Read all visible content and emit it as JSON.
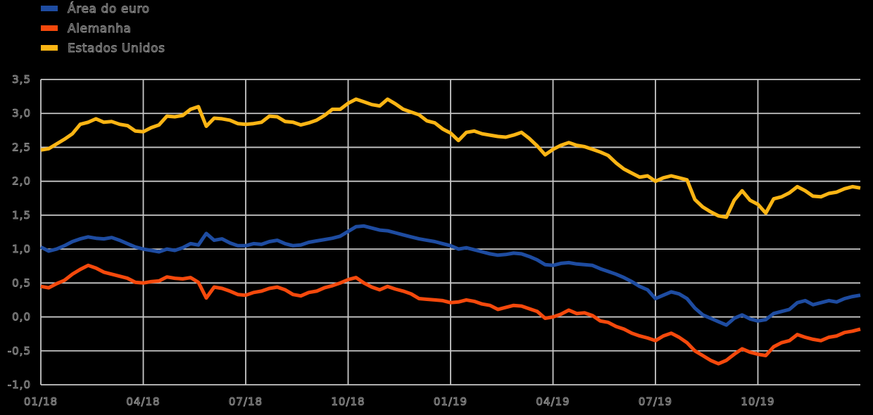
{
  "legend": {
    "position": "top-left",
    "items": [
      {
        "label": "Área do euro",
        "color": "#1e4ca1"
      },
      {
        "label": "Alemanha",
        "color": "#f5490c"
      },
      {
        "label": "Estados Unidos",
        "color": "#fcb514"
      }
    ]
  },
  "chart_data": {
    "type": "line",
    "x_frequency": "weekly",
    "x_total_months": 24,
    "x_ticks": [
      {
        "month": 0,
        "label": "01/18"
      },
      {
        "month": 3,
        "label": "04/18"
      },
      {
        "month": 6,
        "label": "07/18"
      },
      {
        "month": 9,
        "label": "10/18"
      },
      {
        "month": 12,
        "label": "01/19"
      },
      {
        "month": 15,
        "label": "04/19"
      },
      {
        "month": 18,
        "label": "07/19"
      },
      {
        "month": 21,
        "label": "10/19"
      }
    ],
    "y_ticks": [
      {
        "value": 3.5,
        "label": "3,5"
      },
      {
        "value": 3.0,
        "label": "3,0"
      },
      {
        "value": 2.5,
        "label": "2,5"
      },
      {
        "value": 2.0,
        "label": "2,0"
      },
      {
        "value": 1.5,
        "label": "1,5"
      },
      {
        "value": 1.0,
        "label": "1,0"
      },
      {
        "value": 0.5,
        "label": "0,5"
      },
      {
        "value": 0.0,
        "label": "0,0"
      },
      {
        "value": -0.5,
        "label": "-0,5"
      },
      {
        "value": -1.0,
        "label": "-1,0"
      }
    ],
    "ylim": [
      -1.0,
      3.5
    ],
    "grid": true,
    "background": "#000000",
    "grid_color": "#c8c8c8",
    "text_outline_color": "#8f8f8f",
    "series": [
      {
        "name": "Área do euro",
        "color": "#1e4ca1",
        "values": [
          1.03,
          0.97,
          1.0,
          1.05,
          1.11,
          1.15,
          1.18,
          1.16,
          1.15,
          1.17,
          1.13,
          1.08,
          1.03,
          1.0,
          0.98,
          0.96,
          1.0,
          0.98,
          1.02,
          1.08,
          1.06,
          1.23,
          1.13,
          1.15,
          1.09,
          1.05,
          1.05,
          1.08,
          1.07,
          1.11,
          1.13,
          1.08,
          1.05,
          1.06,
          1.1,
          1.12,
          1.14,
          1.16,
          1.19,
          1.26,
          1.33,
          1.34,
          1.31,
          1.28,
          1.27,
          1.24,
          1.21,
          1.18,
          1.15,
          1.13,
          1.11,
          1.08,
          1.05,
          1.0,
          1.02,
          0.99,
          0.96,
          0.93,
          0.91,
          0.92,
          0.94,
          0.93,
          0.89,
          0.84,
          0.77,
          0.76,
          0.79,
          0.8,
          0.78,
          0.77,
          0.76,
          0.71,
          0.67,
          0.63,
          0.58,
          0.52,
          0.45,
          0.4,
          0.27,
          0.32,
          0.37,
          0.34,
          0.27,
          0.13,
          0.03,
          -0.02,
          -0.07,
          -0.12,
          -0.02,
          0.03,
          -0.03,
          -0.06,
          -0.04,
          0.05,
          0.08,
          0.11,
          0.21,
          0.24,
          0.18,
          0.21,
          0.24,
          0.22,
          0.27,
          0.3,
          0.32
        ]
      },
      {
        "name": "Alemanha",
        "color": "#f5490c",
        "values": [
          0.45,
          0.43,
          0.49,
          0.54,
          0.63,
          0.7,
          0.76,
          0.72,
          0.66,
          0.63,
          0.6,
          0.57,
          0.51,
          0.5,
          0.52,
          0.53,
          0.59,
          0.57,
          0.56,
          0.58,
          0.51,
          0.28,
          0.44,
          0.42,
          0.38,
          0.33,
          0.32,
          0.36,
          0.38,
          0.42,
          0.44,
          0.4,
          0.33,
          0.31,
          0.36,
          0.38,
          0.43,
          0.46,
          0.5,
          0.55,
          0.58,
          0.5,
          0.44,
          0.4,
          0.45,
          0.41,
          0.38,
          0.34,
          0.27,
          0.26,
          0.25,
          0.24,
          0.21,
          0.22,
          0.25,
          0.23,
          0.19,
          0.17,
          0.11,
          0.14,
          0.17,
          0.16,
          0.12,
          0.08,
          -0.02,
          0.0,
          0.04,
          0.1,
          0.05,
          0.06,
          0.02,
          -0.06,
          -0.08,
          -0.14,
          -0.18,
          -0.24,
          -0.28,
          -0.31,
          -0.35,
          -0.28,
          -0.24,
          -0.3,
          -0.38,
          -0.5,
          -0.57,
          -0.64,
          -0.69,
          -0.64,
          -0.55,
          -0.47,
          -0.52,
          -0.55,
          -0.57,
          -0.44,
          -0.38,
          -0.35,
          -0.26,
          -0.3,
          -0.33,
          -0.35,
          -0.3,
          -0.28,
          -0.23,
          -0.21,
          -0.18
        ]
      },
      {
        "name": "Estados Unidos",
        "color": "#fcb514",
        "values": [
          2.46,
          2.48,
          2.55,
          2.62,
          2.7,
          2.84,
          2.87,
          2.92,
          2.87,
          2.88,
          2.84,
          2.82,
          2.74,
          2.73,
          2.79,
          2.83,
          2.96,
          2.95,
          2.97,
          3.06,
          3.1,
          2.81,
          2.93,
          2.92,
          2.9,
          2.85,
          2.84,
          2.85,
          2.87,
          2.96,
          2.95,
          2.88,
          2.87,
          2.83,
          2.86,
          2.9,
          2.97,
          3.06,
          3.06,
          3.15,
          3.21,
          3.17,
          3.13,
          3.11,
          3.21,
          3.14,
          3.06,
          3.02,
          2.98,
          2.89,
          2.86,
          2.77,
          2.71,
          2.6,
          2.72,
          2.74,
          2.7,
          2.68,
          2.66,
          2.65,
          2.68,
          2.72,
          2.63,
          2.52,
          2.39,
          2.47,
          2.53,
          2.57,
          2.53,
          2.51,
          2.47,
          2.43,
          2.38,
          2.27,
          2.18,
          2.12,
          2.06,
          2.08,
          2.0,
          2.05,
          2.08,
          2.05,
          2.02,
          1.73,
          1.62,
          1.55,
          1.49,
          1.47,
          1.72,
          1.86,
          1.72,
          1.66,
          1.53,
          1.74,
          1.77,
          1.83,
          1.92,
          1.86,
          1.78,
          1.77,
          1.82,
          1.84,
          1.89,
          1.92,
          1.9
        ]
      }
    ]
  }
}
